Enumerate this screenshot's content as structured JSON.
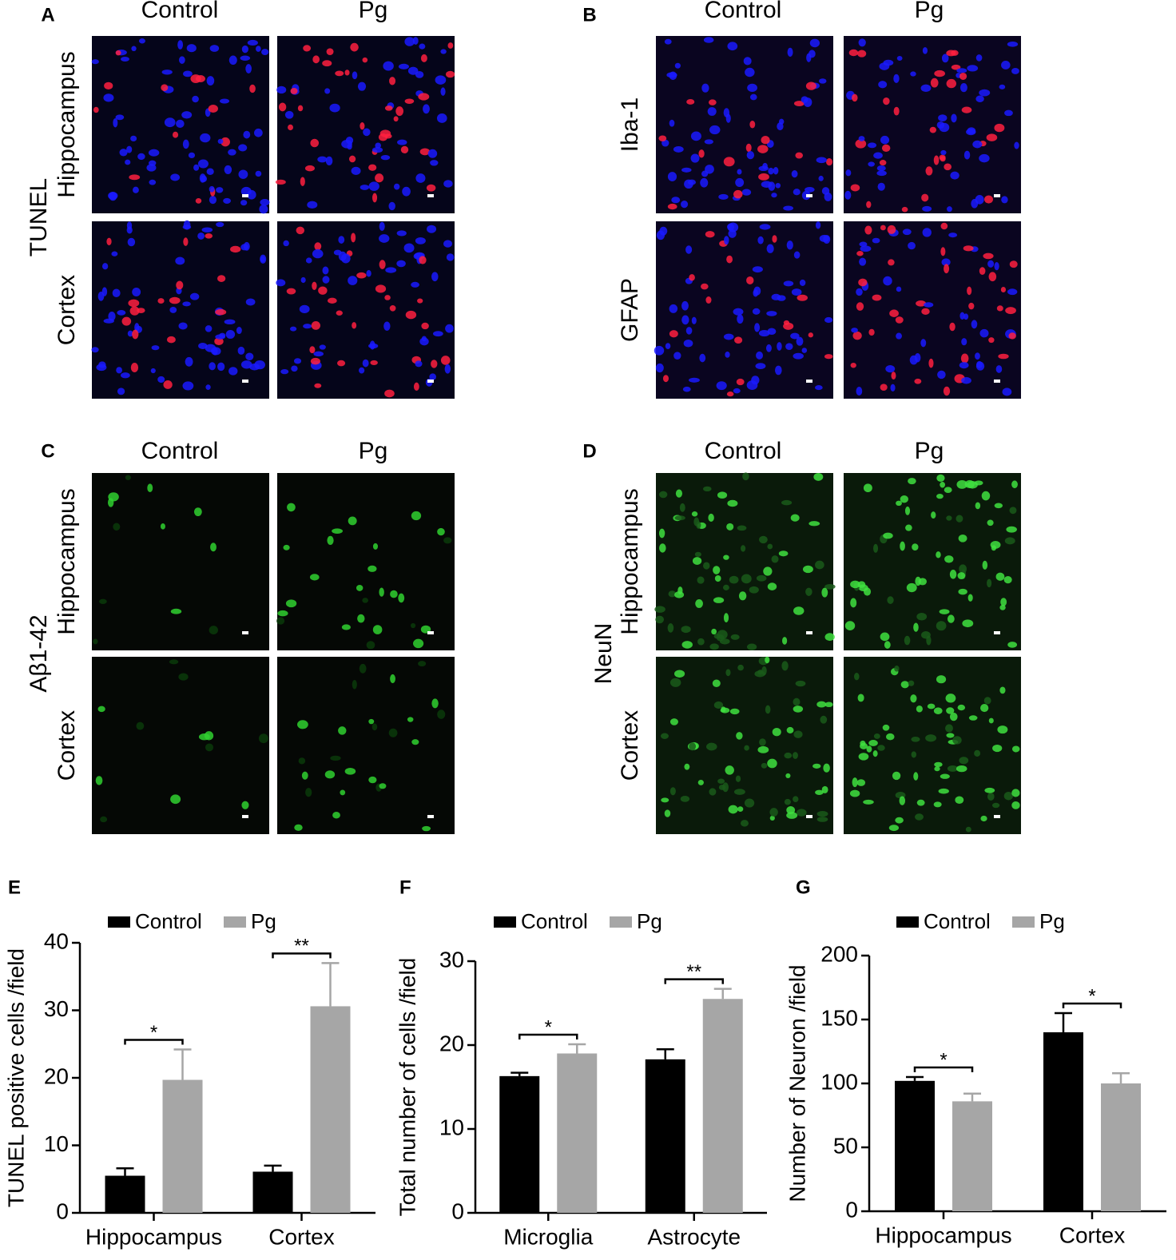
{
  "panels": [
    {
      "label": "A",
      "columns": [
        "Control",
        "Pg"
      ],
      "stain": "TUNEL",
      "rows": [
        "Hippocampus",
        "Cortex"
      ]
    },
    {
      "label": "B",
      "columns": [
        "Control",
        "Pg"
      ],
      "rows": [
        "Iba-1",
        "GFAP"
      ]
    },
    {
      "label": "C",
      "columns": [
        "Control",
        "Pg"
      ],
      "stain": "Aβ1-42",
      "rows": [
        "Hippocampus",
        "Cortex"
      ]
    },
    {
      "label": "D",
      "columns": [
        "Control",
        "Pg"
      ],
      "stain": "NeuN",
      "rows": [
        "Hippocampus",
        "Cortex"
      ]
    }
  ],
  "chart_data": [
    {
      "type": "bar",
      "label": "E",
      "ylabel": "TUNEL positive cells /field",
      "categories": [
        "Hippocampus",
        "Cortex"
      ],
      "series": [
        {
          "name": "Control",
          "color": "#000000",
          "values": [
            5.5,
            6.1
          ],
          "errors": [
            1.1,
            0.9
          ]
        },
        {
          "name": "Pg",
          "color": "#a6a6a6",
          "values": [
            19.7,
            30.6
          ],
          "errors": [
            4.5,
            6.4
          ]
        }
      ],
      "significance": [
        "*",
        "**"
      ],
      "ylim": [
        0,
        40
      ],
      "yticks": [
        0,
        10,
        20,
        30,
        40
      ]
    },
    {
      "type": "bar",
      "label": "F",
      "ylabel": "Total number of cells /field",
      "categories": [
        "Microglia",
        "Astrocyte"
      ],
      "series": [
        {
          "name": "Control",
          "color": "#000000",
          "values": [
            16.3,
            18.3
          ],
          "errors": [
            0.4,
            1.2
          ]
        },
        {
          "name": "Pg",
          "color": "#a6a6a6",
          "values": [
            19.0,
            25.5
          ],
          "errors": [
            1.1,
            1.2
          ]
        }
      ],
      "significance": [
        "*",
        "**"
      ],
      "ylim": [
        0,
        30
      ],
      "yticks": [
        0,
        10,
        20,
        30
      ]
    },
    {
      "type": "bar",
      "label": "G",
      "ylabel": "Number of Neuron /field",
      "categories": [
        "Hippocampus",
        "Cortex"
      ],
      "series": [
        {
          "name": "Control",
          "color": "#000000",
          "values": [
            102,
            140
          ],
          "errors": [
            3,
            15
          ]
        },
        {
          "name": "Pg",
          "color": "#a6a6a6",
          "values": [
            86,
            100
          ],
          "errors": [
            6,
            8
          ]
        }
      ],
      "significance": [
        "*",
        "*"
      ],
      "ylim": [
        0,
        200
      ],
      "yticks": [
        0,
        50,
        100,
        150,
        200
      ]
    }
  ]
}
